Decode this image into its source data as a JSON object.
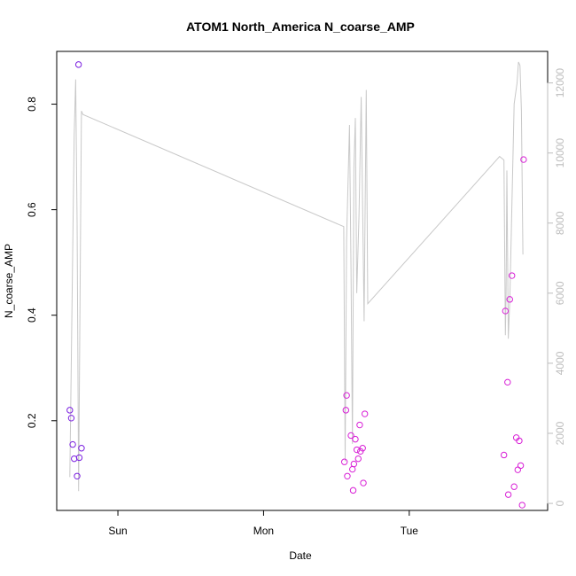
{
  "chart_data": {
    "type": "scatter",
    "title": "ATOM1 North_America N_coarse_AMP",
    "xlabel": "Date",
    "ylabel": "N_coarse_AMP",
    "x_ticks": [
      "Sun",
      "Mon",
      "Tue"
    ],
    "x_unit": "days from Sun",
    "xlim": [
      -0.42,
      2.95
    ],
    "ylim": [
      0.03,
      0.9
    ],
    "y_ticks": [
      0.2,
      0.4,
      0.6,
      0.8
    ],
    "y_tick_labels": [
      "0.2",
      "0.4",
      "0.6",
      "0.8"
    ],
    "y2_lim": [
      -200,
      12900
    ],
    "y2_ticks": [
      0,
      2000,
      4000,
      6000,
      8000,
      10000,
      12000
    ],
    "y2_tick_labels": [
      "0",
      "2000",
      "4000",
      "6000",
      "8000",
      "10000",
      "12000"
    ],
    "grid": false,
    "legend": "none",
    "series": [
      {
        "color": "#7b1fe0",
        "marker": "circle-open",
        "points": [
          [
            -0.33,
            0.22
          ],
          [
            -0.32,
            0.205
          ],
          [
            -0.31,
            0.155
          ],
          [
            -0.3,
            0.128
          ],
          [
            -0.28,
            0.095
          ],
          [
            -0.27,
            0.875
          ],
          [
            -0.265,
            0.13
          ],
          [
            -0.25,
            0.148
          ]
        ]
      },
      {
        "color": "#d81fd6",
        "marker": "circle-open",
        "points": [
          [
            1.555,
            0.122
          ],
          [
            1.565,
            0.22
          ],
          [
            1.57,
            0.248
          ],
          [
            1.575,
            0.095
          ],
          [
            1.6,
            0.172
          ],
          [
            1.61,
            0.108
          ],
          [
            1.615,
            0.068
          ],
          [
            1.62,
            0.118
          ],
          [
            1.63,
            0.165
          ],
          [
            1.64,
            0.145
          ],
          [
            1.65,
            0.128
          ],
          [
            1.66,
            0.192
          ],
          [
            1.665,
            0.142
          ],
          [
            1.68,
            0.148
          ],
          [
            1.685,
            0.082
          ],
          [
            1.695,
            0.213
          ],
          [
            2.65,
            0.135
          ],
          [
            2.66,
            0.408
          ],
          [
            2.675,
            0.273
          ],
          [
            2.68,
            0.06
          ],
          [
            2.69,
            0.43
          ],
          [
            2.705,
            0.475
          ],
          [
            2.72,
            0.075
          ],
          [
            2.735,
            0.168
          ],
          [
            2.745,
            0.107
          ],
          [
            2.755,
            0.162
          ],
          [
            2.765,
            0.115
          ],
          [
            2.775,
            0.04
          ],
          [
            2.785,
            0.695
          ]
        ]
      },
      {
        "axis": "right",
        "type": "line",
        "color": "#c8c8c8",
        "points": [
          [
            -0.33,
            750
          ],
          [
            -0.3,
            10500
          ],
          [
            -0.29,
            12100
          ],
          [
            -0.28,
            8000
          ],
          [
            -0.27,
            350
          ],
          [
            -0.25,
            11200
          ],
          [
            -0.24,
            11100
          ],
          [
            1.55,
            7900
          ],
          [
            1.56,
            1200
          ],
          [
            1.57,
            7500
          ],
          [
            1.59,
            10800
          ],
          [
            1.6,
            6700
          ],
          [
            1.61,
            1700
          ],
          [
            1.62,
            9600
          ],
          [
            1.63,
            11000
          ],
          [
            1.64,
            6000
          ],
          [
            1.655,
            8200
          ],
          [
            1.67,
            11600
          ],
          [
            1.69,
            5200
          ],
          [
            1.695,
            7500
          ],
          [
            1.705,
            11800
          ],
          [
            1.715,
            5700
          ],
          [
            2.62,
            9900
          ],
          [
            2.65,
            9800
          ],
          [
            2.66,
            4800
          ],
          [
            2.665,
            6000
          ],
          [
            2.67,
            9500
          ],
          [
            2.68,
            4700
          ],
          [
            2.69,
            5800
          ],
          [
            2.72,
            11400
          ],
          [
            2.74,
            12000
          ],
          [
            2.75,
            12600
          ],
          [
            2.76,
            12500
          ],
          [
            2.77,
            11200
          ],
          [
            2.78,
            7100
          ]
        ]
      }
    ]
  }
}
